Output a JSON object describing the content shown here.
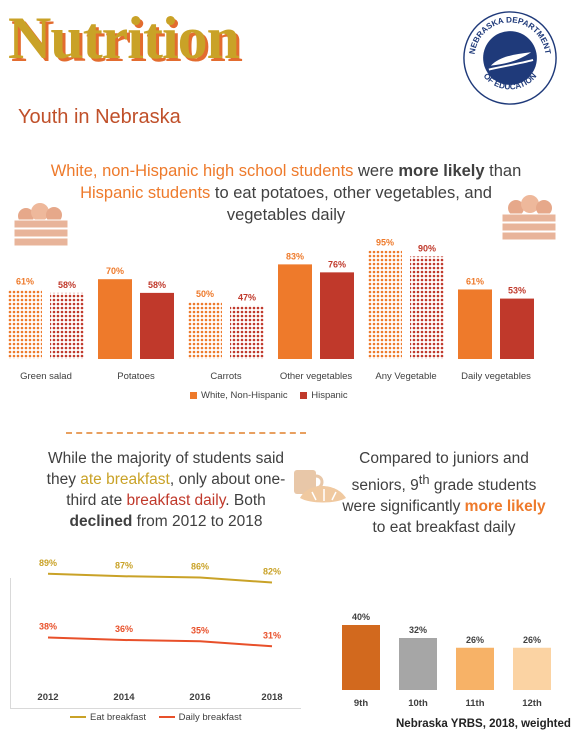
{
  "header": {
    "title": "Nutrition",
    "subtitle": "Youth in Nebraska"
  },
  "logo": {
    "top_text": "NEBRASKA DEPARTMENT",
    "bottom_text": "OF EDUCATION"
  },
  "headline": {
    "part1": "White, non-Hispanic high school students",
    "part2": " were ",
    "part3": "more likely",
    "part4": " than ",
    "part5": "Hispanic students",
    "part6": " to eat potatoes, other vegetables, and vegetables daily"
  },
  "breakfast_text": {
    "p1": "While the majority of students said they ",
    "p2": "ate breakfast",
    "p3": ", only about one-third ate ",
    "p4": "breakfast daily",
    "p5": ". Both ",
    "p6": "declined",
    "p7": " from 2012 to 2018"
  },
  "grade_text": {
    "p1": "Compared to juniors and seniors, 9",
    "p1_sup": "th",
    "p2": " grade students were significantly ",
    "p3": "more likely",
    "p4": " to eat breakfast daily"
  },
  "source": "Nebraska YRBS, 2018, weighted",
  "colors": {
    "white_nonhispanic": "#ee7a2b",
    "hispanic": "#c0392b",
    "eat_breakfast": "#c9a227",
    "daily_breakfast": "#e8502a",
    "grade9": "#d2691e",
    "grade10": "#a6a6a6",
    "grade11": "#f7b267",
    "grade12": "#fbd3a3"
  },
  "chart_data": [
    {
      "type": "bar",
      "categories": [
        "Green salad",
        "Potatoes",
        "Carrots",
        "Other vegetables",
        "Any Vegetable",
        "Daily vegetables"
      ],
      "series": [
        {
          "name": "White, Non-Hispanic",
          "values": [
            61,
            70,
            50,
            83,
            95,
            61
          ],
          "labels": [
            "61%",
            "70%",
            "50%",
            "83%",
            "95%",
            "61%"
          ]
        },
        {
          "name": "Hispanic",
          "values": [
            58,
            58,
            47,
            76,
            90,
            53
          ],
          "labels": [
            "58%",
            "58%",
            "47%",
            "76%",
            "90%",
            "53%"
          ]
        }
      ],
      "patterned_categories": [
        "Green salad",
        "Carrots",
        "Any Vegetable"
      ],
      "legend_position": "bottom"
    },
    {
      "type": "line",
      "x": [
        "2012",
        "2014",
        "2016",
        "2018"
      ],
      "series": [
        {
          "name": "Eat breakfast",
          "values": [
            89,
            87,
            86,
            82
          ],
          "labels": [
            "89%",
            "87%",
            "86%",
            "82%"
          ]
        },
        {
          "name": "Daily breakfast",
          "values": [
            38,
            36,
            35,
            31
          ],
          "labels": [
            "38%",
            "36%",
            "35%",
            "31%"
          ]
        }
      ],
      "legend_position": "bottom"
    },
    {
      "type": "bar",
      "categories": [
        "9th",
        "10th",
        "11th",
        "12th"
      ],
      "values": [
        40,
        32,
        26,
        26
      ],
      "labels": [
        "40%",
        "32%",
        "26%",
        "26%"
      ]
    }
  ]
}
